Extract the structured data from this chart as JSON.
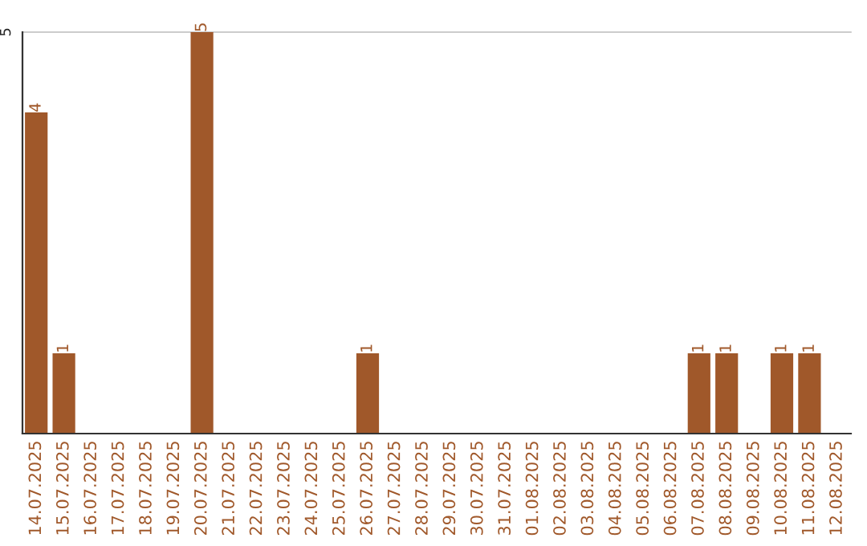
{
  "chart_data": {
    "type": "bar",
    "categories": [
      "14.07.2025",
      "15.07.2025",
      "16.07.2025",
      "17.07.2025",
      "18.07.2025",
      "19.07.2025",
      "20.07.2025",
      "21.07.2025",
      "22.07.2025",
      "23.07.2025",
      "24.07.2025",
      "25.07.2025",
      "26.07.2025",
      "27.07.2025",
      "28.07.2025",
      "29.07.2025",
      "30.07.2025",
      "31.07.2025",
      "01.08.2025",
      "02.08.2025",
      "03.08.2025",
      "04.08.2025",
      "05.08.2025",
      "06.08.2025",
      "07.08.2025",
      "08.08.2025",
      "09.08.2025",
      "10.08.2025",
      "11.08.2025",
      "12.08.2025"
    ],
    "values": [
      4,
      1,
      0,
      0,
      0,
      0,
      5,
      0,
      0,
      0,
      0,
      0,
      1,
      0,
      0,
      0,
      0,
      0,
      0,
      0,
      0,
      0,
      0,
      0,
      1,
      1,
      0,
      1,
      1,
      0
    ],
    "value_labels": [
      "4",
      "1",
      null,
      null,
      null,
      null,
      "5",
      null,
      null,
      null,
      null,
      null,
      "1",
      null,
      null,
      null,
      null,
      null,
      null,
      null,
      null,
      null,
      null,
      null,
      "1",
      "1",
      null,
      "1",
      "1",
      null
    ],
    "color": "#a0582a",
    "ylim": [
      0,
      5
    ],
    "yticks": [
      5
    ],
    "ref_lines": [
      {
        "axis": "y",
        "value": 5,
        "color": "#cccccc"
      }
    ]
  }
}
